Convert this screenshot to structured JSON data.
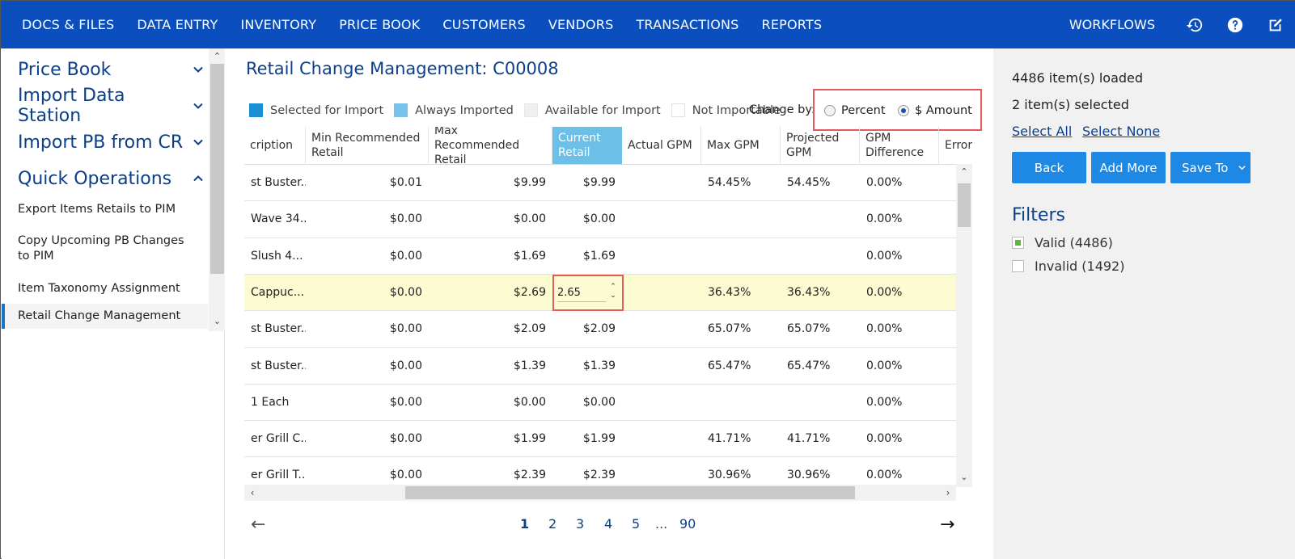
{
  "nav": {
    "items": [
      "DOCS & FILES",
      "DATA ENTRY",
      "INVENTORY",
      "PRICE BOOK",
      "CUSTOMERS",
      "VENDORS",
      "TRANSACTIONS",
      "REPORTS"
    ],
    "workflows": "WORKFLOWS",
    "icons": [
      "history-icon",
      "help-icon",
      "edit-note-icon"
    ]
  },
  "sidebar": {
    "sections": [
      {
        "label": "Price Book",
        "expanded": false
      },
      {
        "label": "Import Data Station",
        "expanded": false
      },
      {
        "label": "Import PB from CR",
        "expanded": false
      },
      {
        "label": "Quick Operations",
        "expanded": true
      }
    ],
    "items": [
      "Export Items Retails to PIM",
      "Copy Upcoming PB Changes to PIM",
      "Item Taxonomy Assignment",
      "Retail Change Management"
    ],
    "active_item": "Retail Change Management"
  },
  "main": {
    "title": "Retail Change Management: C00008",
    "legend": [
      {
        "label": "Selected for Import",
        "color": "#1a8fd6"
      },
      {
        "label": "Always Imported",
        "color": "#78c3ea"
      },
      {
        "label": "Available for Import",
        "color": "#f0f0f0"
      },
      {
        "label": "Not Importable",
        "color": "#ffffff"
      }
    ],
    "change_by": {
      "label": "Change by:",
      "options": [
        {
          "label": "Percent",
          "selected": false
        },
        {
          "label": "$ Amount",
          "selected": true
        }
      ]
    },
    "columns": [
      "cription",
      "Min Recommended Retail",
      "Max Recommended Retail",
      "Current Retail",
      "Actual GPM",
      "Max GPM",
      "Projected GPM",
      "GPM Difference",
      "Errors"
    ],
    "rows": [
      {
        "desc": "st Buster...",
        "min": "$0.01",
        "max": "$9.99",
        "current": "$9.99",
        "actual": "",
        "maxgpm": "54.45%",
        "proj": "54.45%",
        "diff": "0.00%"
      },
      {
        "desc": "Wave 34...",
        "min": "$0.00",
        "max": "$0.00",
        "current": "$0.00",
        "actual": "",
        "maxgpm": "",
        "proj": "",
        "diff": "0.00%"
      },
      {
        "desc": "Slush 4...",
        "min": "$0.00",
        "max": "$1.69",
        "current": "$1.69",
        "actual": "",
        "maxgpm": "",
        "proj": "",
        "diff": "0.00%"
      },
      {
        "desc": "Cappuc...",
        "min": "$0.00",
        "max": "$2.69",
        "current": "2.65",
        "actual": "",
        "maxgpm": "36.43%",
        "proj": "36.43%",
        "diff": "0.00%"
      },
      {
        "desc": "st Buster...",
        "min": "$0.00",
        "max": "$2.09",
        "current": "$2.09",
        "actual": "",
        "maxgpm": "65.07%",
        "proj": "65.07%",
        "diff": "0.00%"
      },
      {
        "desc": "st Buster...",
        "min": "$0.00",
        "max": "$1.39",
        "current": "$1.39",
        "actual": "",
        "maxgpm": "65.47%",
        "proj": "65.47%",
        "diff": "0.00%"
      },
      {
        "desc": "1 Each",
        "min": "$0.00",
        "max": "$0.00",
        "current": "$0.00",
        "actual": "",
        "maxgpm": "",
        "proj": "",
        "diff": "0.00%"
      },
      {
        "desc": "er Grill C...",
        "min": "$0.00",
        "max": "$1.99",
        "current": "$1.99",
        "actual": "",
        "maxgpm": "41.71%",
        "proj": "41.71%",
        "diff": "0.00%"
      },
      {
        "desc": "er Grill T...",
        "min": "$0.00",
        "max": "$2.39",
        "current": "$2.39",
        "actual": "",
        "maxgpm": "30.96%",
        "proj": "30.96%",
        "diff": "0.00%"
      }
    ],
    "editing_row": 3,
    "pager": {
      "pages": [
        "1",
        "2",
        "3",
        "4",
        "5",
        "...",
        "90"
      ],
      "current": "1",
      "prev": "←",
      "next": "→"
    }
  },
  "right_panel": {
    "loaded": "4486 item(s) loaded",
    "selected": "2 item(s) selected",
    "select_all": "Select All",
    "select_none": "Select None",
    "buttons": {
      "back": "Back",
      "add_more": "Add More",
      "save_to": "Save To"
    },
    "filters_heading": "Filters",
    "filters": [
      {
        "label": "Valid (4486)",
        "checked": true
      },
      {
        "label": "Invalid (1492)",
        "checked": false
      }
    ]
  }
}
